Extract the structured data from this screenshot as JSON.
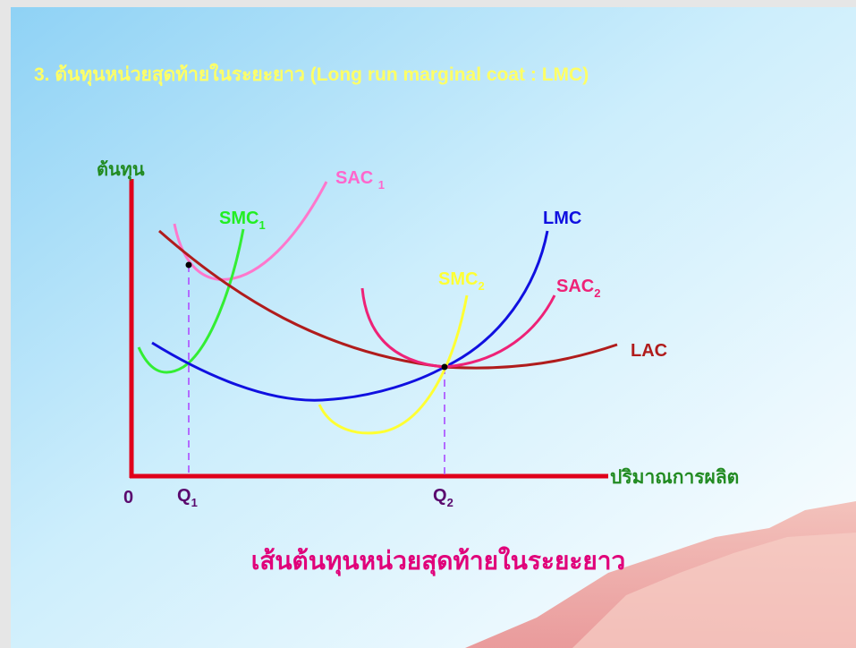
{
  "slide": {
    "title": "3. ต้นทุนหน่วยสุดท้ายในระยะยาว (Long run marginal coat : LMC)",
    "y_axis_label": "ต้นทุน",
    "x_axis_label": "ปริมาณการผลิต",
    "origin_label": "0",
    "quantities": [
      {
        "text": "Q",
        "sub": "1"
      },
      {
        "text": "Q",
        "sub": "2"
      }
    ],
    "curves": [
      {
        "text": "SAC",
        "sub": "1"
      },
      {
        "text": "SMC",
        "sub": "1"
      },
      {
        "text": "LMC"
      },
      {
        "text": "SMC",
        "sub": "2"
      },
      {
        "text": "SAC",
        "sub": "2"
      },
      {
        "text": "LAC"
      }
    ],
    "caption": "เส้นต้นทุนหน่วยสุดท้ายในระยะยาว"
  }
}
